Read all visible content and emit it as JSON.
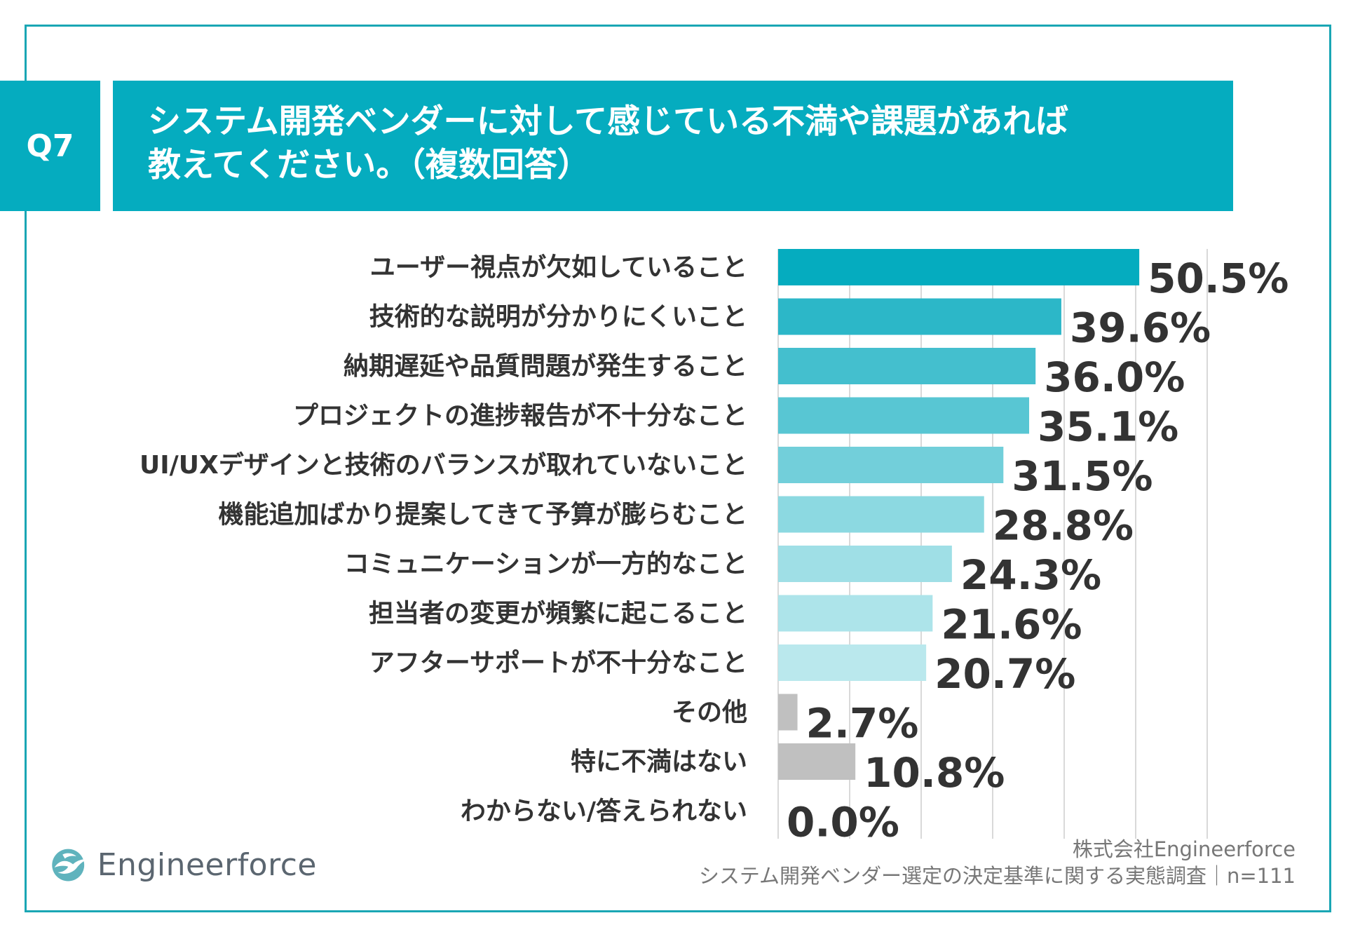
{
  "header": {
    "q_label": "Q7",
    "title_line1": "システム開発ベンダーに対して感じている不満や課題があれば",
    "title_line2": "教えてください。（複数回答）"
  },
  "footer": {
    "company": "株式会社Engineerforce",
    "survey": "システム開発ベンダー選定の決定基準に関する実態調査｜n=111"
  },
  "logo": {
    "text": "Engineerforce",
    "icon": "bird-wave-logo-icon"
  },
  "colors": {
    "accent": "#05acbf",
    "border": "#1aa6b4",
    "grey_bar": "#c0c0c0",
    "bar_colors": [
      "#05acbf",
      "#2cb7c8",
      "#44bfce",
      "#58c6d3",
      "#72cfda",
      "#8cd9e1",
      "#9fdfe6",
      "#ade4ea",
      "#bae8ed",
      "#c0c0c0",
      "#c0c0c0",
      "#c0c0c0"
    ]
  },
  "chart_data": {
    "type": "bar",
    "orientation": "horizontal",
    "title": "システム開発ベンダーに対して感じている不満や課題があれば教えてください。（複数回答）",
    "categories": [
      "ユーザー視点が欠如していること",
      "技術的な説明が分かりにくいこと",
      "納期遅延や品質問題が発生すること",
      "プロジェクトの進捗報告が不十分なこと",
      "UI/UXデザインと技術のバランスが取れていないこと",
      "機能追加ばかり提案してきて予算が膨らむこと",
      "コミュニケーションが一方的なこと",
      "担当者の変更が頻繁に起こること",
      "アフターサポートが不十分なこと",
      "その他",
      "特に不満はない",
      "わからない/答えられない"
    ],
    "values": [
      50.5,
      39.6,
      36.0,
      35.1,
      31.5,
      28.8,
      24.3,
      21.6,
      20.7,
      2.7,
      10.8,
      0.0
    ],
    "value_labels": [
      "50.5%",
      "39.6%",
      "36.0%",
      "35.1%",
      "31.5%",
      "28.8%",
      "24.3%",
      "21.6%",
      "20.7%",
      "2.7%",
      "10.8%",
      "0.0%"
    ],
    "unit": "%",
    "xlim": [
      0,
      60
    ],
    "grid_step": 10,
    "grid": true,
    "xlabel": "",
    "ylabel": ""
  }
}
